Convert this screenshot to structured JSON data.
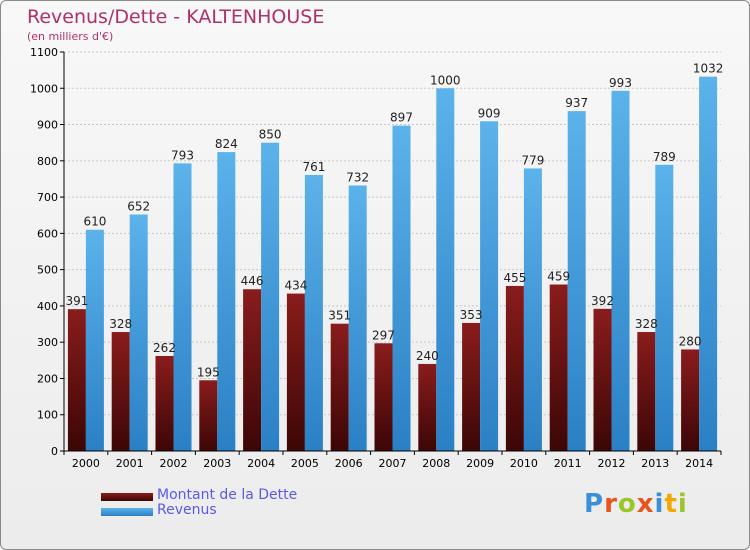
{
  "title": "Revenus/Dette - KALTENHOUSE",
  "subtitle": "(en milliers d'€)",
  "brand": [
    "P",
    "r",
    "o",
    "x",
    "i",
    "t",
    "i"
  ],
  "brand_colors": [
    "#3a8fd6",
    "#e8541c",
    "#9bc62a",
    "#e8541c",
    "#3a8fd6",
    "#f2a900",
    "#9bc62a"
  ],
  "colors": {
    "debt": "#6e1414",
    "revenue": "#4aa3e0",
    "axis_text": "#000000",
    "grid": "#c8c8c8"
  },
  "legend": [
    {
      "label": "Montant de la Dette",
      "color": "#6e1414"
    },
    {
      "label": "Revenus",
      "color": "#4aa3e0"
    }
  ],
  "chart_data": {
    "type": "bar",
    "title": "Revenus/Dette - KALTENHOUSE",
    "ylabel": "(en milliers d'€)",
    "xlabel": "",
    "ylim": [
      0,
      1100
    ],
    "yticks": [
      0,
      100,
      200,
      300,
      400,
      500,
      600,
      700,
      800,
      900,
      1000,
      1100
    ],
    "grid": true,
    "categories": [
      "2000",
      "2001",
      "2002",
      "2003",
      "2004",
      "2005",
      "2006",
      "2007",
      "2008",
      "2009",
      "2010",
      "2011",
      "2012",
      "2013",
      "2014"
    ],
    "series": [
      {
        "name": "Montant de la Dette",
        "values": [
          391,
          328,
          262,
          195,
          446,
          434,
          351,
          297,
          240,
          353,
          455,
          459,
          392,
          328,
          280
        ]
      },
      {
        "name": "Revenus",
        "values": [
          610,
          652,
          793,
          824,
          850,
          761,
          732,
          897,
          1000,
          909,
          779,
          937,
          993,
          789,
          1032
        ]
      }
    ]
  }
}
